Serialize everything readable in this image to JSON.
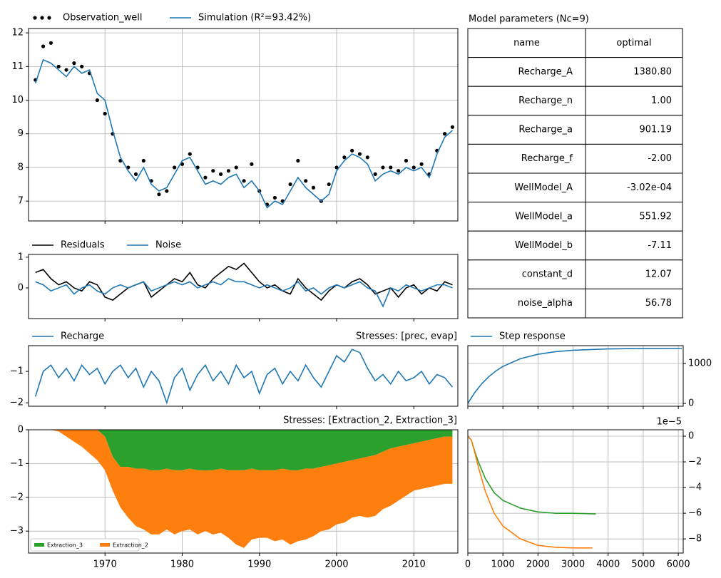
{
  "chart_data": [
    {
      "type": "line",
      "grid": true,
      "x": [
        1961,
        1962,
        1963,
        1964,
        1965,
        1966,
        1967,
        1968,
        1969,
        1970,
        1971,
        1972,
        1973,
        1974,
        1975,
        1976,
        1977,
        1978,
        1979,
        1980,
        1981,
        1982,
        1983,
        1984,
        1985,
        1986,
        1987,
        1988,
        1989,
        1990,
        1991,
        1992,
        1993,
        1994,
        1995,
        1996,
        1997,
        1998,
        1999,
        2000,
        2001,
        2002,
        2003,
        2004,
        2005,
        2006,
        2007,
        2008,
        2009,
        2010,
        2011,
        2012,
        2013,
        2014,
        2015
      ],
      "xlim": [
        1960.1,
        2015.7
      ],
      "ylim": [
        6.41,
        12.13
      ],
      "yticks": [
        7,
        8,
        9,
        10,
        11,
        12
      ],
      "series": [
        {
          "name": "Observation_well",
          "color": "#000000",
          "marker": "dots",
          "values": [
            10.6,
            11.6,
            11.7,
            11.0,
            10.9,
            11.1,
            11.0,
            10.8,
            10.0,
            9.6,
            9.0,
            8.2,
            8.0,
            7.8,
            8.2,
            7.6,
            7.2,
            7.3,
            8.0,
            8.1,
            8.4,
            8.0,
            7.7,
            7.9,
            7.8,
            7.9,
            8.0,
            7.6,
            8.1,
            7.3,
            6.9,
            7.1,
            7.0,
            7.5,
            8.2,
            7.6,
            7.4,
            7.0,
            7.5,
            8.0,
            8.3,
            8.5,
            8.4,
            8.3,
            7.8,
            8.0,
            8.0,
            7.9,
            8.2,
            8.0,
            8.1,
            7.8,
            8.5,
            9.0,
            9.2
          ]
        },
        {
          "name": "Simulation (R²=93.42%)",
          "color": "#1f77b4",
          "values": [
            10.5,
            11.2,
            11.1,
            10.9,
            10.7,
            11.0,
            10.8,
            10.9,
            10.2,
            10.0,
            9.1,
            8.3,
            7.9,
            7.6,
            8.0,
            7.5,
            7.3,
            7.4,
            7.8,
            8.2,
            8.3,
            7.9,
            7.5,
            7.6,
            7.5,
            7.7,
            7.8,
            7.4,
            7.6,
            7.3,
            6.8,
            7.0,
            6.9,
            7.3,
            7.7,
            7.4,
            7.2,
            7.0,
            7.2,
            7.9,
            8.2,
            8.4,
            8.3,
            8.1,
            7.6,
            7.8,
            7.9,
            7.8,
            8.0,
            7.9,
            8.0,
            7.7,
            8.4,
            8.9,
            9.1
          ]
        }
      ]
    },
    {
      "type": "line",
      "grid": false,
      "x": [
        1961,
        1962,
        1963,
        1964,
        1965,
        1966,
        1967,
        1968,
        1969,
        1970,
        1971,
        1972,
        1973,
        1974,
        1975,
        1976,
        1977,
        1978,
        1979,
        1980,
        1981,
        1982,
        1983,
        1984,
        1985,
        1986,
        1987,
        1988,
        1989,
        1990,
        1991,
        1992,
        1993,
        1994,
        1995,
        1996,
        1997,
        1998,
        1999,
        2000,
        2001,
        2002,
        2003,
        2004,
        2005,
        2006,
        2007,
        2008,
        2009,
        2010,
        2011,
        2012,
        2013,
        2014,
        2015
      ],
      "xlim": [
        1960.1,
        2015.7
      ],
      "ylim": [
        -1.0,
        1.09
      ],
      "yticks": [
        0,
        1
      ],
      "series": [
        {
          "name": "Residuals",
          "color": "#000000",
          "values": [
            0.5,
            0.6,
            0.3,
            0.1,
            0.2,
            0.0,
            -0.1,
            0.2,
            0.1,
            -0.3,
            -0.4,
            -0.2,
            0.0,
            0.1,
            0.2,
            -0.3,
            -0.1,
            0.1,
            0.3,
            0.2,
            0.5,
            0.1,
            0.0,
            0.3,
            0.5,
            0.7,
            0.6,
            0.8,
            0.5,
            0.2,
            0.0,
            0.1,
            -0.1,
            -0.2,
            0.3,
            0.0,
            -0.2,
            -0.4,
            -0.1,
            0.1,
            0.0,
            0.2,
            0.3,
            0.1,
            -0.2,
            -0.1,
            0.0,
            -0.3,
            0.0,
            0.1,
            -0.2,
            0.0,
            -0.1,
            0.2,
            0.1
          ]
        },
        {
          "name": "Noise",
          "color": "#1f77b4",
          "values": [
            0.2,
            0.1,
            -0.1,
            0.0,
            0.1,
            -0.2,
            0.0,
            0.1,
            -0.1,
            -0.2,
            0.0,
            0.1,
            0.0,
            0.1,
            0.2,
            -0.1,
            0.0,
            0.1,
            0.2,
            0.1,
            0.2,
            0.0,
            0.1,
            0.2,
            0.1,
            0.3,
            0.2,
            0.2,
            0.1,
            0.0,
            0.1,
            0.0,
            -0.1,
            0.0,
            0.2,
            -0.1,
            0.0,
            -0.2,
            0.0,
            0.1,
            0.0,
            0.1,
            0.2,
            0.0,
            -0.1,
            -0.6,
            0.0,
            -0.1,
            0.1,
            0.0,
            -0.1,
            0.0,
            0.1,
            0.1,
            0.0
          ]
        }
      ]
    },
    {
      "type": "line",
      "grid": false,
      "title": "Stresses: [prec, evap]",
      "x": [
        1961,
        1962,
        1963,
        1964,
        1965,
        1966,
        1967,
        1968,
        1969,
        1970,
        1971,
        1972,
        1973,
        1974,
        1975,
        1976,
        1977,
        1978,
        1979,
        1980,
        1981,
        1982,
        1983,
        1984,
        1985,
        1986,
        1987,
        1988,
        1989,
        1990,
        1991,
        1992,
        1993,
        1994,
        1995,
        1996,
        1997,
        1998,
        1999,
        2000,
        2001,
        2002,
        2003,
        2004,
        2005,
        2006,
        2007,
        2008,
        2009,
        2010,
        2011,
        2012,
        2013,
        2014,
        2015
      ],
      "xlim": [
        1960.1,
        2015.7
      ],
      "ylim": [
        -2.11,
        -0.18
      ],
      "yticks": [
        {
          "value": -2,
          "label": "−2"
        },
        {
          "value": -1,
          "label": "−1"
        }
      ],
      "series": [
        {
          "name": "Recharge",
          "color": "#1f77b4",
          "values": [
            -1.8,
            -1.0,
            -0.8,
            -1.2,
            -0.9,
            -1.3,
            -0.8,
            -1.1,
            -0.9,
            -1.4,
            -1.0,
            -0.8,
            -1.2,
            -0.9,
            -1.5,
            -1.0,
            -1.3,
            -2.0,
            -1.2,
            -0.9,
            -1.6,
            -1.1,
            -0.8,
            -1.3,
            -1.0,
            -1.4,
            -0.8,
            -1.2,
            -1.0,
            -1.7,
            -1.1,
            -0.9,
            -1.4,
            -1.0,
            -1.3,
            -0.8,
            -1.2,
            -1.5,
            -1.0,
            -0.5,
            -0.7,
            -0.3,
            -0.4,
            -0.9,
            -1.3,
            -1.1,
            -1.4,
            -1.0,
            -1.3,
            -1.2,
            -1.0,
            -1.4,
            -1.1,
            -1.2,
            -1.5
          ]
        }
      ]
    },
    {
      "type": "area",
      "grid": true,
      "title": "Stresses: [Extraction_2, Extraction_3]",
      "x": [
        1961,
        1962,
        1963,
        1964,
        1965,
        1966,
        1967,
        1968,
        1969,
        1970,
        1971,
        1972,
        1973,
        1974,
        1975,
        1976,
        1977,
        1978,
        1979,
        1980,
        1981,
        1982,
        1983,
        1984,
        1985,
        1986,
        1987,
        1988,
        1989,
        1990,
        1991,
        1992,
        1993,
        1994,
        1995,
        1996,
        1997,
        1998,
        1999,
        2000,
        2001,
        2002,
        2003,
        2004,
        2005,
        2006,
        2007,
        2008,
        2009,
        2010,
        2011,
        2012,
        2013,
        2014,
        2015
      ],
      "xlim": [
        1960.1,
        2015.7
      ],
      "ylim": [
        -3.65,
        0
      ],
      "xticks": [
        1970,
        1980,
        1990,
        2000,
        2010
      ],
      "yticks": [
        {
          "value": -3,
          "label": "−3"
        },
        {
          "value": -2,
          "label": "−2"
        },
        {
          "value": -1,
          "label": "−1"
        },
        0
      ],
      "series": [
        {
          "name": "Extraction_3",
          "color": "#2ca02c",
          "values": [
            0,
            0,
            0,
            0,
            0,
            0,
            0,
            0,
            0,
            -0.2,
            -0.8,
            -1.1,
            -1.1,
            -1.15,
            -1.15,
            -1.2,
            -1.2,
            -1.15,
            -1.2,
            -1.2,
            -1.15,
            -1.2,
            -1.2,
            -1.2,
            -1.15,
            -1.2,
            -1.2,
            -1.2,
            -1.15,
            -1.2,
            -1.2,
            -1.2,
            -1.15,
            -1.2,
            -1.2,
            -1.15,
            -1.15,
            -1.1,
            -1.05,
            -1.0,
            -0.95,
            -0.9,
            -0.85,
            -0.8,
            -0.75,
            -0.65,
            -0.55,
            -0.5,
            -0.45,
            -0.4,
            -0.35,
            -0.3,
            -0.25,
            -0.2,
            -0.2
          ]
        },
        {
          "name": "Extraction_2",
          "color": "#ff7f0e",
          "values": [
            0,
            0,
            0,
            -0.05,
            -0.2,
            -0.35,
            -0.5,
            -0.7,
            -0.9,
            -1.0,
            -1.0,
            -1.2,
            -1.5,
            -1.7,
            -1.8,
            -1.9,
            -1.9,
            -1.8,
            -1.9,
            -1.8,
            -1.8,
            -1.9,
            -1.8,
            -1.9,
            -1.9,
            -2.0,
            -2.2,
            -2.3,
            -2.1,
            -2.0,
            -2.0,
            -2.1,
            -2.1,
            -2.2,
            -2.1,
            -2.1,
            -2.0,
            -1.9,
            -1.9,
            -1.8,
            -1.8,
            -1.7,
            -1.7,
            -1.8,
            -1.8,
            -1.7,
            -1.7,
            -1.6,
            -1.5,
            -1.4,
            -1.4,
            -1.4,
            -1.4,
            -1.4,
            -1.4
          ]
        }
      ]
    },
    {
      "type": "line",
      "grid": true,
      "yaxis_side": "right",
      "xlim": [
        0,
        6140
      ],
      "ylim": [
        -71,
        1446
      ],
      "yticks": [
        0,
        1000
      ],
      "x": [
        0,
        200,
        400,
        600,
        800,
        1000,
        1500,
        2000,
        2500,
        3000,
        4000,
        5000,
        6100
      ],
      "series": [
        {
          "name": "Step response",
          "color": "#1f77b4",
          "values": [
            0,
            274.8,
            495.0,
            671.3,
            812.6,
            925.7,
            1119.8,
            1230.8,
            1294.7,
            1331.5,
            1364.5,
            1375.4,
            1379.2
          ]
        }
      ]
    },
    {
      "type": "line",
      "grid": true,
      "yaxis_side": "right",
      "offset_label": "1e−5",
      "xlim": [
        0,
        6140
      ],
      "ylim": [
        -9.1,
        0.5
      ],
      "xticks": [
        0,
        1000,
        2000,
        3000,
        4000,
        5000,
        6000
      ],
      "yticks": [
        {
          "value": -8,
          "label": "−8"
        },
        {
          "value": -6,
          "label": "−6"
        },
        {
          "value": -4,
          "label": "−4"
        },
        {
          "value": -2,
          "label": "−2"
        },
        0
      ],
      "series": [
        {
          "color": "#2ca02c",
          "x": [
            0,
            100,
            200,
            300,
            500,
            750,
            1000,
            1500,
            2000,
            2500,
            3000,
            3650
          ],
          "values": [
            0,
            -0.3,
            -1.2,
            -2.0,
            -3.3,
            -4.4,
            -5.0,
            -5.6,
            -5.9,
            -6.0,
            -6.0,
            -6.05
          ]
        },
        {
          "color": "#ff7f0e",
          "x": [
            0,
            100,
            200,
            300,
            500,
            750,
            1000,
            1500,
            2000,
            2500,
            3000,
            3550
          ],
          "values": [
            0,
            -0.3,
            -1.3,
            -2.4,
            -4.3,
            -6.0,
            -7.0,
            -8.0,
            -8.5,
            -8.65,
            -8.7,
            -8.7
          ]
        }
      ]
    }
  ],
  "table": {
    "title": "Model parameters (Nc=9)",
    "header": [
      "name",
      "optimal"
    ],
    "rows": [
      [
        "Recharge_A",
        "1380.80"
      ],
      [
        "Recharge_n",
        "1.00"
      ],
      [
        "Recharge_a",
        "901.19"
      ],
      [
        "Recharge_f",
        "-2.00"
      ],
      [
        "WellModel_A",
        "-3.02e-04"
      ],
      [
        "WellModel_a",
        "551.92"
      ],
      [
        "WellModel_b",
        "-7.11"
      ],
      [
        "constant_d",
        "12.07"
      ],
      [
        "noise_alpha",
        "56.78"
      ]
    ]
  }
}
